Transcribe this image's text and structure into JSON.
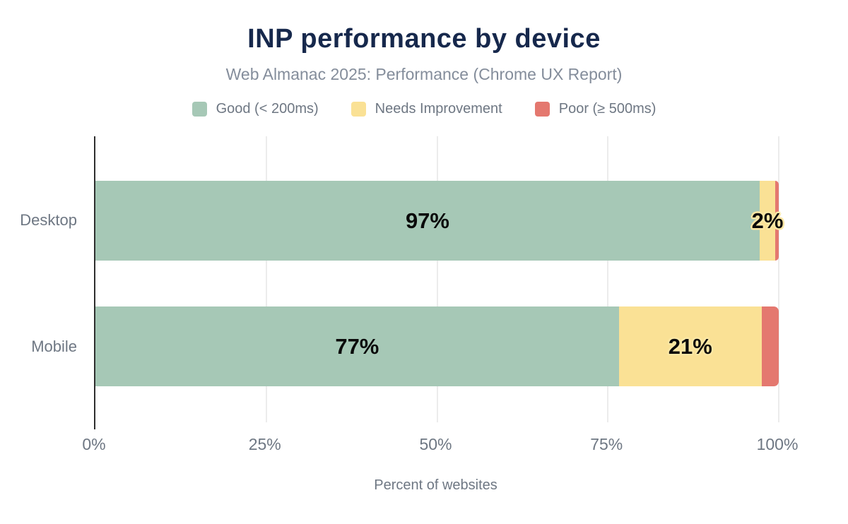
{
  "title": "INP performance by device",
  "subtitle": "Web Almanac 2025: Performance (Chrome UX Report)",
  "legend": {
    "items": [
      {
        "label": "Good (< 200ms)",
        "color": "#a6c8b6"
      },
      {
        "label": "Needs Improvement",
        "color": "#fae195"
      },
      {
        "label": "Poor (≥ 500ms)",
        "color": "#e4786f"
      }
    ]
  },
  "chart_data": {
    "type": "bar",
    "orientation": "horizontal",
    "stacked": true,
    "title": "INP performance by device",
    "subtitle": "Web Almanac 2025: Performance (Chrome UX Report)",
    "categories": [
      "Desktop",
      "Mobile"
    ],
    "series": [
      {
        "name": "Good (< 200ms)",
        "color": "#a6c8b6",
        "values": [
          97.2,
          76.6
        ],
        "labels": [
          "97%",
          "77%"
        ]
      },
      {
        "name": "Needs Improvement",
        "color": "#fae195",
        "halo": "#fbe7a4",
        "values": [
          2.3,
          20.9
        ],
        "labels": [
          "2%",
          "21%"
        ]
      },
      {
        "name": "Poor (≥ 500ms)",
        "color": "#e4786f",
        "values": [
          0.5,
          2.5
        ],
        "labels": [
          "",
          ""
        ]
      }
    ],
    "xlabel": "Percent of websites",
    "xlim": [
      0,
      100
    ],
    "xticks": [
      {
        "value": 0,
        "label": "0%"
      },
      {
        "value": 25,
        "label": "25%"
      },
      {
        "value": 50,
        "label": "50%"
      },
      {
        "value": 75,
        "label": "75%"
      },
      {
        "value": 100,
        "label": "100%"
      }
    ],
    "grid": "vertical",
    "legend_position": "top"
  },
  "colors": {
    "title": "#16284c",
    "muted_text": "#6e7783",
    "subtitle_text": "#848d9b",
    "axis_line": "#2e2e2e",
    "gridline": "#ececec",
    "background": "#ffffff",
    "bar_label_text": "#0a0a0a"
  }
}
